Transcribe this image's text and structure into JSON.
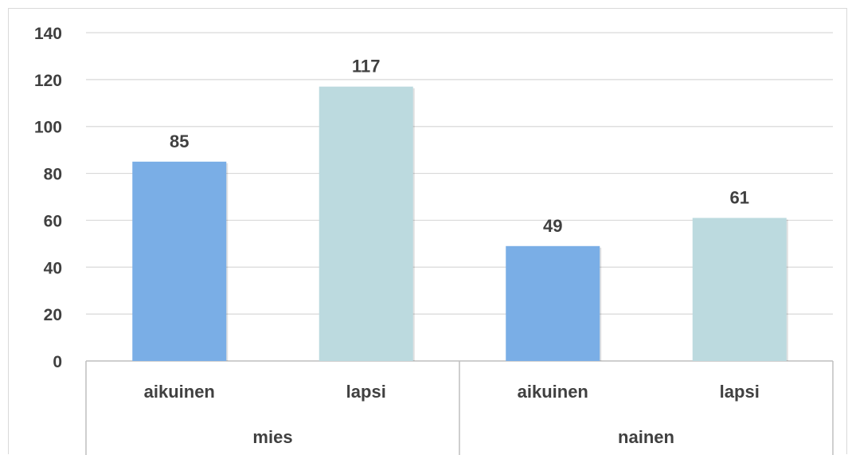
{
  "chart_data": {
    "type": "bar",
    "categories": [
      {
        "group": "mies",
        "label": "aikuinen"
      },
      {
        "group": "mies",
        "label": "lapsi"
      },
      {
        "group": "nainen",
        "label": "aikuinen"
      },
      {
        "group": "nainen",
        "label": "lapsi"
      }
    ],
    "groups": [
      "mies",
      "nainen"
    ],
    "values": [
      85,
      117,
      49,
      61
    ],
    "data_labels": [
      "85",
      "117",
      "49",
      "61"
    ],
    "bar_colors": [
      "#7aaee6",
      "#bcdadf",
      "#7aaee6",
      "#bcdadf"
    ],
    "ylim": [
      0,
      140
    ],
    "yticks": [
      0,
      20,
      40,
      60,
      80,
      100,
      120,
      140
    ],
    "grid": true,
    "title": "",
    "xlabel": "",
    "ylabel": "",
    "colors": {
      "grid": "#d9d9d9",
      "axis": "#bfbfbf",
      "text": "#404040"
    }
  }
}
